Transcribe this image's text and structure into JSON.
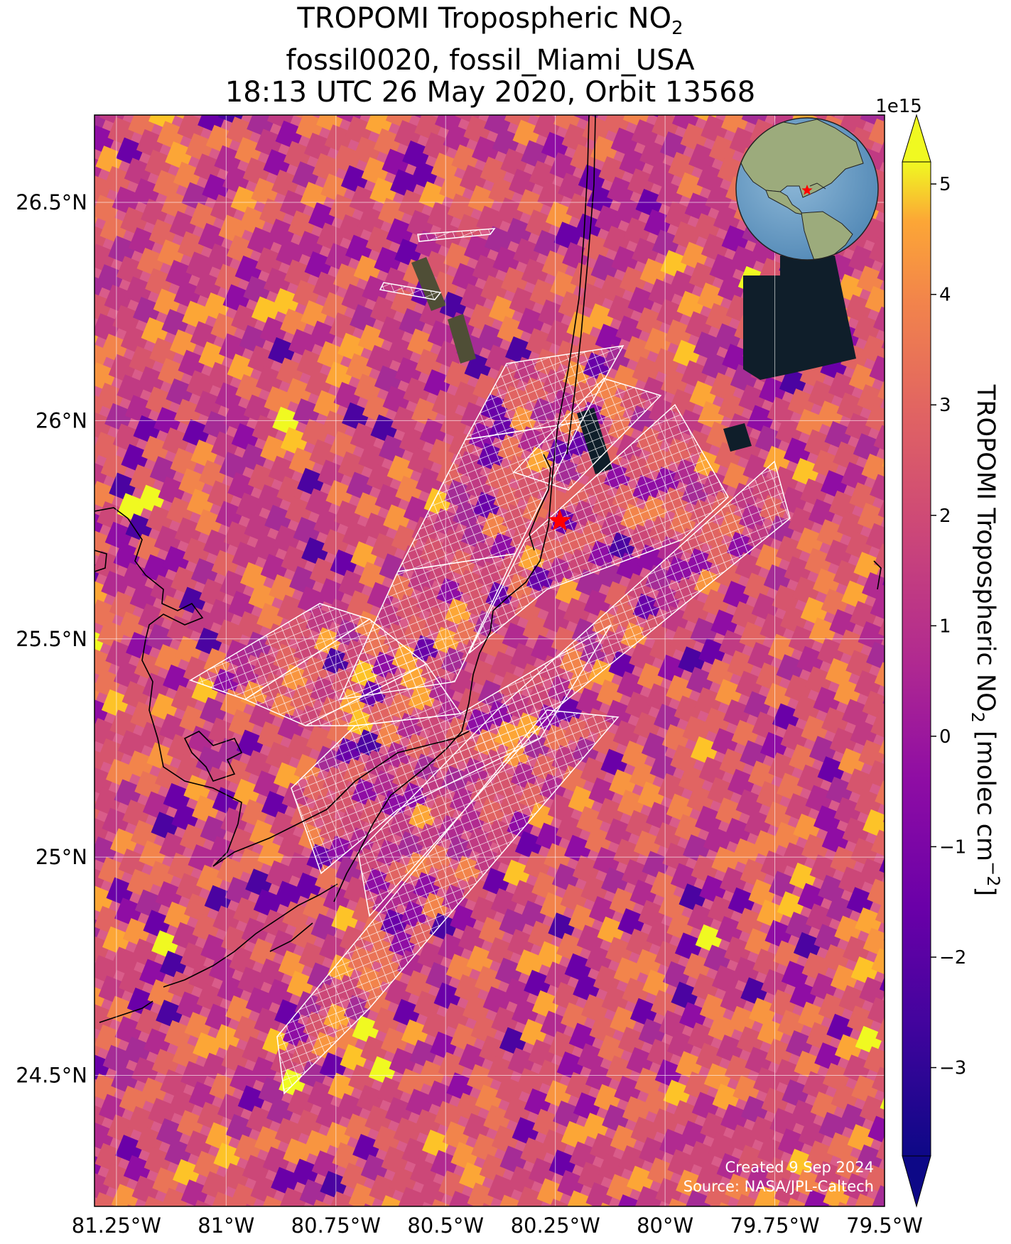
{
  "title": {
    "line1_main": "TROPOMI Tropospheric NO",
    "line1_sub": "2",
    "line2": "fossil0020, fossil_Miami_USA",
    "line3": "18:13 UTC 26 May 2020, Orbit 13568"
  },
  "map": {
    "lon_range": [
      -81.3,
      -79.5
    ],
    "lat_range": [
      24.2,
      26.7
    ],
    "lon_ticks": [
      {
        "value": -81.25,
        "label": "81.25°W"
      },
      {
        "value": -81.0,
        "label": "81°W"
      },
      {
        "value": -80.75,
        "label": "80.75°W"
      },
      {
        "value": -80.5,
        "label": "80.5°W"
      },
      {
        "value": -80.25,
        "label": "80.25°W"
      },
      {
        "value": -80.0,
        "label": "80°W"
      },
      {
        "value": -79.75,
        "label": "79.75°W"
      },
      {
        "value": -79.5,
        "label": "79.5°W"
      }
    ],
    "lat_ticks": [
      {
        "value": 26.5,
        "label": "26.5°N"
      },
      {
        "value": 26.0,
        "label": "26°N"
      },
      {
        "value": 25.5,
        "label": "25.5°N"
      },
      {
        "value": 25.0,
        "label": "25°N"
      },
      {
        "value": 24.5,
        "label": "24.5°N"
      }
    ],
    "target_marker": {
      "lon": -80.24,
      "lat": 25.77,
      "color": "#ff0000",
      "shape": "star"
    },
    "gridlines": true,
    "colormap": "plasma",
    "background_color": "#d95c8a",
    "coastline_color": "#000000",
    "inset_globe": {
      "center": "Florida / Caribbean",
      "marker_color": "#ff0000"
    },
    "credits": [
      "Created 9 Sep 2024",
      "Source: NASA/JPL-Caltech"
    ]
  },
  "colorbar": {
    "label_main": "TROPOMI Tropospheric NO",
    "label_sub": "2",
    "label_units": " [molec cm",
    "label_sup": "−2",
    "label_close": "]",
    "multiplier": "1e15",
    "range": [
      -3.8,
      5.2
    ],
    "ticks": [
      {
        "value": 5,
        "label": "5"
      },
      {
        "value": 4,
        "label": "4"
      },
      {
        "value": 3,
        "label": "3"
      },
      {
        "value": 2,
        "label": "2"
      },
      {
        "value": 1,
        "label": "1"
      },
      {
        "value": 0,
        "label": "0"
      },
      {
        "value": -1,
        "label": "−1"
      },
      {
        "value": -2,
        "label": "−2"
      },
      {
        "value": -3,
        "label": "−3"
      }
    ],
    "extend": "both"
  }
}
